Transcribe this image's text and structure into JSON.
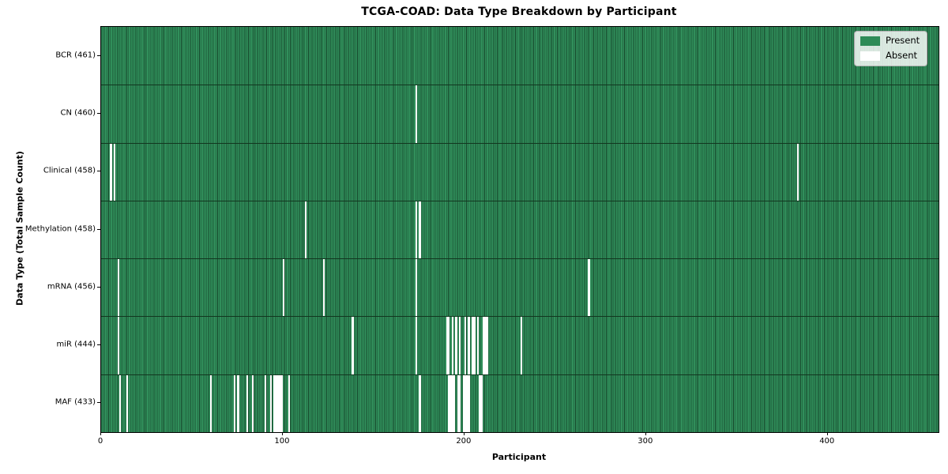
{
  "chart_data": {
    "type": "heatmap",
    "title": "TCGA-COAD: Data Type Breakdown by Participant",
    "xlabel": "Participant",
    "ylabel": "Data Type (Total Sample Count)",
    "n_participants": 461,
    "xlim": [
      0,
      461
    ],
    "x_ticks": [
      0,
      100,
      200,
      300,
      400
    ],
    "grid": false,
    "colors": {
      "present": "#2e8b57",
      "present_edge": "#17482c",
      "absent": "#ffffff",
      "spine": "#000000"
    },
    "legend": {
      "position": "upper-right",
      "entries": [
        {
          "label": "Present",
          "color": "#2e8b57"
        },
        {
          "label": "Absent",
          "color": "#ffffff"
        }
      ]
    },
    "rows": [
      {
        "name": "BCR",
        "label": "BCR (461)",
        "present_count": 461,
        "absent_participants": []
      },
      {
        "name": "CN",
        "label": "CN (460)",
        "present_count": 460,
        "absent_participants": [
          173
        ]
      },
      {
        "name": "Clinical",
        "label": "Clinical (458)",
        "present_count": 458,
        "absent_participants": [
          5,
          7,
          383
        ]
      },
      {
        "name": "Methylation",
        "label": "Methylation (458)",
        "present_count": 458,
        "absent_participants": [
          112,
          173,
          175
        ]
      },
      {
        "name": "mRNA",
        "label": "mRNA (456)",
        "present_count": 456,
        "absent_participants": [
          9,
          100,
          122,
          173,
          268
        ]
      },
      {
        "name": "miR",
        "label": "miR (444)",
        "present_count": 444,
        "absent_participants": [
          9,
          138,
          173,
          190,
          191,
          193,
          195,
          197,
          200,
          202,
          204,
          205,
          207,
          210,
          211,
          212,
          231
        ]
      },
      {
        "name": "MAF",
        "label": "MAF (433)",
        "present_count": 433,
        "absent_participants": [
          10,
          14,
          60,
          73,
          75,
          80,
          83,
          90,
          93,
          95,
          96,
          97,
          98,
          99,
          103,
          175,
          191,
          192,
          193,
          194,
          196,
          197,
          199,
          200,
          201,
          202,
          208,
          209
        ]
      }
    ]
  }
}
